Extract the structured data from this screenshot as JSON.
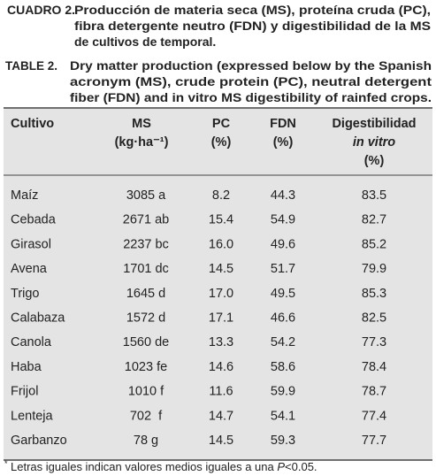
{
  "caption_es": {
    "label": "CUADRO 2.",
    "lines": [
      "Producción de materia seca (MS), proteína cruda (PC),",
      "fibra detergente neutro (FDN) y digestibilidad de la MS",
      "de cultivos de temporal."
    ]
  },
  "caption_en": {
    "label": "TABLE 2.",
    "lines": [
      "Dry matter production (expressed below by the Spanish",
      "acronym (MS), crude protein (PC), neutral detergent",
      "fiber (FDN) and in vitro MS digestibility of rainfed crops."
    ]
  },
  "table": {
    "header": [
      [
        "Cultivo"
      ],
      [
        "MS",
        "(kg·ha⁻¹)"
      ],
      [
        "PC",
        "(%)"
      ],
      [
        "FDN",
        "(%)"
      ],
      [
        "Digestibilidad",
        "in vitro",
        "(%)"
      ]
    ],
    "rows": [
      [
        "Maíz",
        "3085 a",
        "8.2",
        "44.3",
        "83.5"
      ],
      [
        "Cebada",
        "2671 ab",
        "15.4",
        "54.9",
        "82.7"
      ],
      [
        "Girasol",
        "2237 bc",
        "16.0",
        "49.6",
        "85.2"
      ],
      [
        "Avena",
        "1701 dc",
        "14.5",
        "51.7",
        "79.9"
      ],
      [
        "Trigo",
        "1645 d",
        "17.0",
        "49.5",
        "85.3"
      ],
      [
        "Calabaza",
        "1572 d",
        "17.1",
        "46.6",
        "82.5"
      ],
      [
        "Canola",
        "1560 de",
        "13.3",
        "54.2",
        "77.3"
      ],
      [
        "Haba",
        "1023 fe",
        "14.6",
        "58.6",
        "78.4"
      ],
      [
        "Frijol",
        "1010 f",
        "11.6",
        "59.9",
        "78.7"
      ],
      [
        "Lenteja",
        "702  f",
        "14.7",
        "54.1",
        "77.4"
      ],
      [
        "Garbanzo",
        "78 g",
        "14.5",
        "59.3",
        "77.7"
      ]
    ]
  },
  "footnote": {
    "mark": "*",
    "text": "Letras iguales indican valores medios iguales a una ",
    "italic": "P",
    "tail": "<0.05."
  }
}
